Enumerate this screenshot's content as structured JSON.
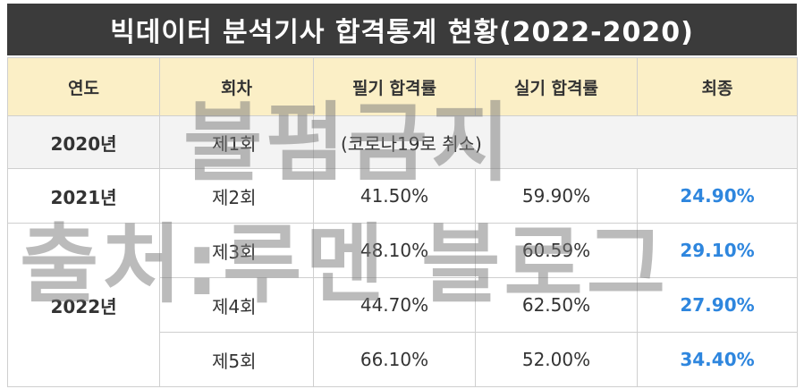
{
  "title": "빅데이터 분석기사 합격통계 현황(2022-2020)",
  "headers": [
    "연도",
    "회차",
    "필기 합격률",
    "실기 합격률",
    "최종"
  ],
  "rows": [
    {
      "year": "2020년",
      "round": "제1회",
      "note": "(코로나19로 취소)"
    },
    {
      "year": "2021년",
      "round": "제2회",
      "written": "41.50%",
      "practical": "59.90%",
      "final": "24.90%"
    },
    {
      "year": "2022년",
      "round": "제3회",
      "written": "48.10%",
      "practical": "60.59%",
      "final": "29.10%"
    },
    {
      "round": "제4회",
      "written": "44.70%",
      "practical": "62.50%",
      "final": "27.90%"
    },
    {
      "round": "제5회",
      "written": "66.10%",
      "practical": "52.00%",
      "final": "34.40%"
    }
  ],
  "watermark": {
    "line1": "불펌금지",
    "line2": "출처:루멘 블로그"
  },
  "colors": {
    "header_bg": "#fbefc6",
    "title_bg": "#3b3b3b",
    "final_text": "#2e86de"
  }
}
